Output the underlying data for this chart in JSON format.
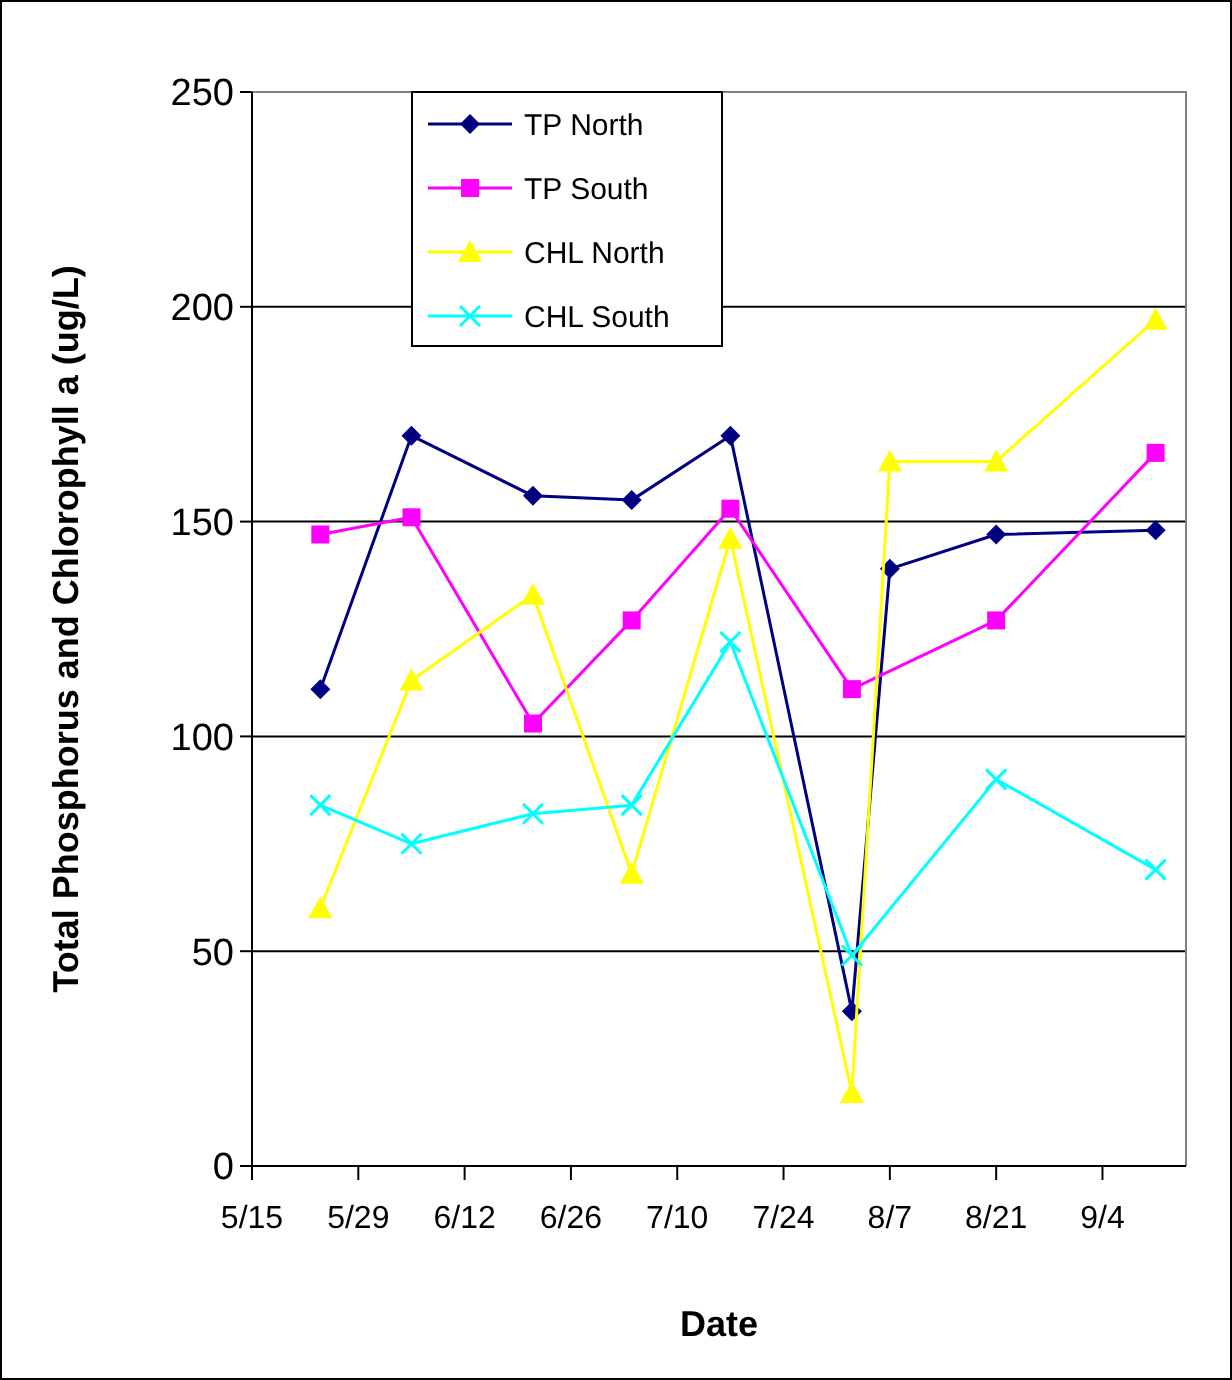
{
  "chart_data": {
    "type": "line",
    "xlabel": "Date",
    "ylabel": "Total Phosphorus and Chlorophyll a (ug/L)",
    "xlim": [
      "--05-15",
      "--09-15"
    ],
    "xticks": [
      {
        "value": "--05-15",
        "label": "5/15"
      },
      {
        "value": "--05-29",
        "label": "5/29"
      },
      {
        "value": "--06-12",
        "label": "6/12"
      },
      {
        "value": "--06-26",
        "label": "6/26"
      },
      {
        "value": "--07-10",
        "label": "7/10"
      },
      {
        "value": "--07-24",
        "label": "7/24"
      },
      {
        "value": "--08-07",
        "label": "8/7"
      },
      {
        "value": "--08-21",
        "label": "8/21"
      },
      {
        "value": "--09-04",
        "label": "9/4"
      }
    ],
    "ylim": [
      0,
      250
    ],
    "yticks": [
      0,
      50,
      100,
      150,
      200,
      250
    ],
    "grid": "y",
    "legend": "top left",
    "line_style": "solid",
    "series": [
      {
        "name": "TP North",
        "color": "#000080",
        "marker": "diamond",
        "x": [
          "--05-24",
          "--06-05",
          "--06-21",
          "--07-04",
          "--07-17",
          "--08-02",
          "--08-07",
          "--08-21",
          "--09-11"
        ],
        "values": [
          111,
          170,
          156,
          155,
          170,
          36,
          139,
          147,
          148
        ]
      },
      {
        "name": "TP South",
        "color": "#ff00ff",
        "marker": "square",
        "x": [
          "--05-24",
          "--06-05",
          "--06-21",
          "--07-04",
          "--07-17",
          "--08-02",
          "--08-21",
          "--09-11"
        ],
        "values": [
          147,
          151,
          103,
          127,
          153,
          111,
          127,
          166
        ]
      },
      {
        "name": "CHL North",
        "color": "#ffff00",
        "marker": "triangle",
        "x": [
          "--05-24",
          "--06-05",
          "--06-21",
          "--07-04",
          "--07-17",
          "--08-02",
          "--08-07",
          "--08-21",
          "--09-11"
        ],
        "values": [
          60,
          113,
          133,
          68,
          146,
          17,
          164,
          164,
          197
        ]
      },
      {
        "name": "CHL South",
        "color": "#00ffff",
        "marker": "cross",
        "x": [
          "--05-24",
          "--06-05",
          "--06-21",
          "--07-04",
          "--07-17",
          "--08-02",
          "--08-21",
          "--09-11"
        ],
        "values": [
          84,
          75,
          82,
          84,
          122,
          49,
          90,
          69
        ]
      }
    ]
  }
}
